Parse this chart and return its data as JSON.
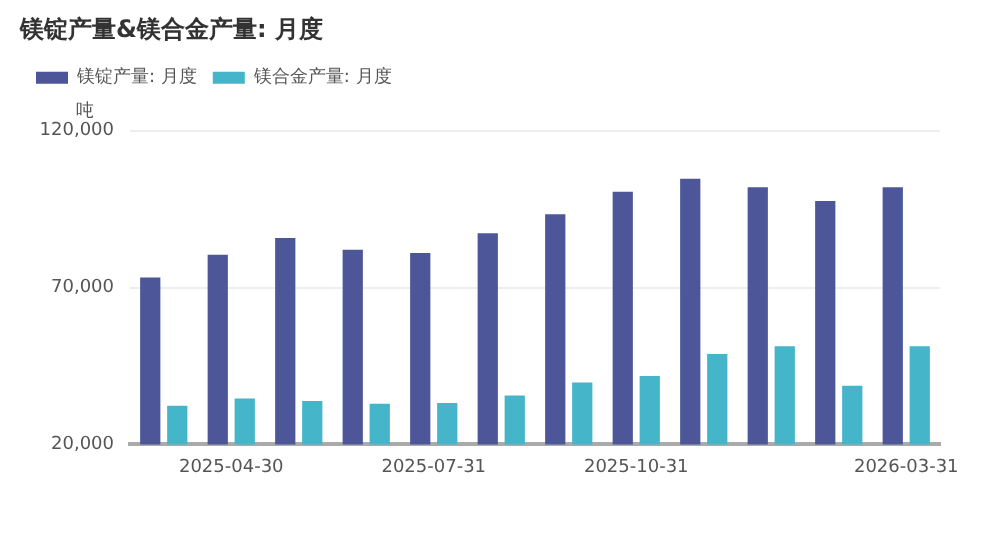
{
  "chart_data": {
    "type": "bar",
    "title": "镁锭产量&镁合金产量: 月度",
    "ylabel": "吨",
    "categories": [
      null,
      "2025-04-30",
      null,
      null,
      "2025-07-31",
      null,
      null,
      "2025-10-31",
      null,
      null,
      null,
      "2026-03-31"
    ],
    "series": [
      {
        "name": "镁锭产量: 月度",
        "color": "#4c5698",
        "values": [
          73200,
          80500,
          85800,
          82100,
          81000,
          87300,
          93400,
          100600,
          104700,
          102000,
          97600,
          102000
        ]
      },
      {
        "name": "镁合金产量: 月度",
        "color": "#45b5c9",
        "values": [
          32300,
          34600,
          33800,
          33000,
          33200,
          35600,
          39700,
          41800,
          48800,
          51300,
          38700,
          51300
        ]
      }
    ],
    "ylim": [
      20000,
      120000
    ],
    "yticks": [
      {
        "value": 20000,
        "label": "20,000"
      },
      {
        "value": 70000,
        "label": "70,000"
      },
      {
        "value": 120000,
        "label": "120,000"
      }
    ],
    "grid": "y",
    "legend": "top left"
  }
}
